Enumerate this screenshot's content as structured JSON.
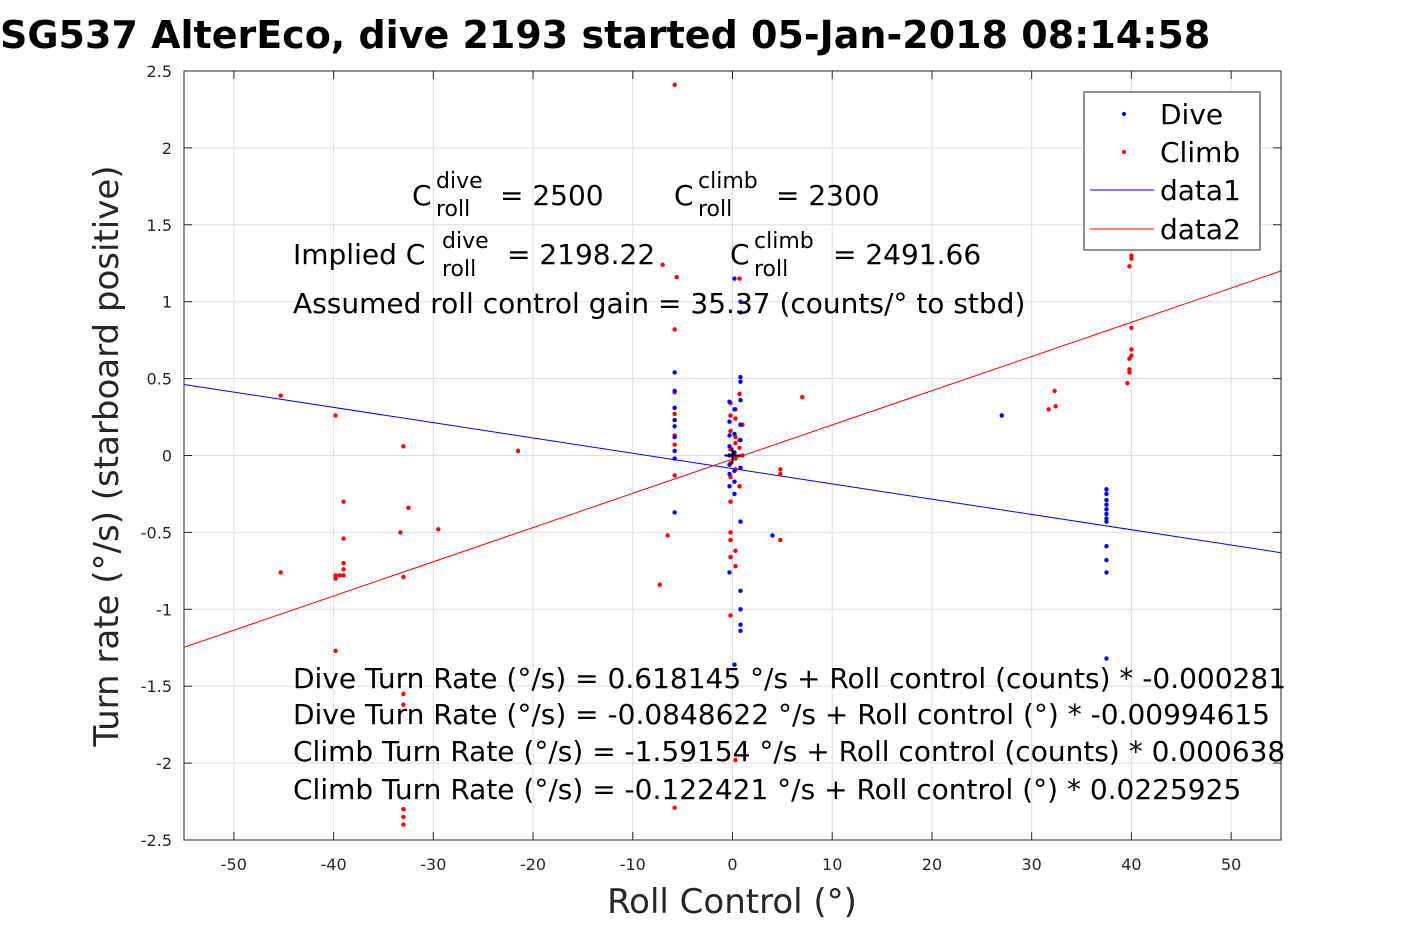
{
  "chart_data": {
    "type": "scatter",
    "title": "SG537 AlterEco, dive 2193 started 05-Jan-2018 08:14:58",
    "xlabel": "Roll Control (°)",
    "ylabel": "Turn rate (°/s) (starboard positive)",
    "xlim": [
      -55,
      55
    ],
    "ylim": [
      -2.5,
      2.5
    ],
    "xticks": [
      -50,
      -40,
      -30,
      -20,
      -10,
      0,
      10,
      20,
      30,
      40,
      50
    ],
    "yticks": [
      -2.5,
      -2,
      -1.5,
      -1,
      -0.5,
      0,
      0.5,
      1,
      1.5,
      2,
      2.5
    ],
    "grid": true,
    "legend": {
      "placement": "top-right",
      "entries": [
        "Dive",
        "Climb",
        "data1",
        "data2"
      ]
    },
    "colors": {
      "dive": "#0000ff",
      "climb": "#ff0000",
      "axes": "#262626",
      "grid": "#dddddd"
    },
    "series": [
      {
        "name": "Dive",
        "kind": "points",
        "points": [
          [
            -5.8,
            0.54
          ],
          [
            -5.8,
            0.42
          ],
          [
            -5.8,
            0.31
          ],
          [
            -5.8,
            0.23
          ],
          [
            -5.8,
            0.19
          ],
          [
            -5.8,
            0.12
          ],
          [
            -5.8,
            0.03
          ],
          [
            -5.8,
            -0.02
          ],
          [
            -5.8,
            -0.37
          ],
          [
            -0.3,
            0.35
          ],
          [
            -0.3,
            0.22
          ],
          [
            -0.3,
            0.13
          ],
          [
            -0.3,
            0.06
          ],
          [
            -0.3,
            0.0
          ],
          [
            -0.3,
            -0.06
          ],
          [
            -0.3,
            -0.12
          ],
          [
            -0.3,
            -0.2
          ],
          [
            -0.3,
            -0.76
          ],
          [
            0.2,
            0.3
          ],
          [
            0.2,
            0.14
          ],
          [
            0.2,
            0.02
          ],
          [
            0.2,
            -0.1
          ],
          [
            0.2,
            -0.17
          ],
          [
            0.2,
            -0.25
          ],
          [
            0.2,
            1.15
          ],
          [
            0.2,
            -1.36
          ],
          [
            0.8,
            0.51
          ],
          [
            0.8,
            0.48
          ],
          [
            0.8,
            0.36
          ],
          [
            0.8,
            0.2
          ],
          [
            0.8,
            0.1
          ],
          [
            0.8,
            -0.08
          ],
          [
            0.8,
            -0.43
          ],
          [
            0.8,
            -0.88
          ],
          [
            0.8,
            -1.0
          ],
          [
            0.8,
            -1.1
          ],
          [
            0.8,
            -1.14
          ],
          [
            0.8,
            1.0
          ],
          [
            0.8,
            0.93
          ],
          [
            4.0,
            -0.52
          ],
          [
            27.0,
            0.26
          ],
          [
            37.5,
            -0.22
          ],
          [
            37.5,
            -0.25
          ],
          [
            37.5,
            -0.29
          ],
          [
            37.5,
            -0.32
          ],
          [
            37.5,
            -0.35
          ],
          [
            37.5,
            -0.38
          ],
          [
            37.5,
            -0.41
          ],
          [
            37.5,
            -0.43
          ],
          [
            37.5,
            -0.59
          ],
          [
            37.5,
            -0.68
          ],
          [
            37.5,
            -0.76
          ],
          [
            37.5,
            -1.32
          ]
        ]
      },
      {
        "name": "Climb",
        "kind": "points",
        "points": [
          [
            -45.3,
            0.39
          ],
          [
            -45.3,
            -0.76
          ],
          [
            -39.8,
            0.26
          ],
          [
            -39.8,
            -0.78
          ],
          [
            -39.8,
            -0.8
          ],
          [
            -39.8,
            -1.27
          ],
          [
            -39.4,
            -0.78
          ],
          [
            -39.0,
            -0.3
          ],
          [
            -39.0,
            -0.54
          ],
          [
            -39.0,
            -0.7
          ],
          [
            -39.0,
            -0.74
          ],
          [
            -39.0,
            -0.78
          ],
          [
            -33.3,
            -0.5
          ],
          [
            -33.0,
            0.06
          ],
          [
            -33.0,
            -0.79
          ],
          [
            -33.0,
            -1.55
          ],
          [
            -33.0,
            -1.62
          ],
          [
            -33.0,
            -2.3
          ],
          [
            -33.0,
            -2.35
          ],
          [
            -33.0,
            -2.4
          ],
          [
            -32.5,
            -0.34
          ],
          [
            -29.5,
            -0.48
          ],
          [
            -21.5,
            0.03
          ],
          [
            -7.0,
            1.24
          ],
          [
            -6.5,
            -0.52
          ],
          [
            -7.3,
            -0.84
          ],
          [
            -5.8,
            2.41
          ],
          [
            -5.6,
            1.16
          ],
          [
            -5.8,
            0.82
          ],
          [
            -5.8,
            0.41
          ],
          [
            -5.8,
            0.27
          ],
          [
            -5.8,
            0.13
          ],
          [
            -5.8,
            0.07
          ],
          [
            -5.8,
            -0.13
          ],
          [
            -5.8,
            -2.29
          ],
          [
            -0.2,
            0.34
          ],
          [
            -0.2,
            0.26
          ],
          [
            -0.2,
            0.16
          ],
          [
            -0.2,
            0.04
          ],
          [
            -0.2,
            -0.05
          ],
          [
            -0.2,
            -0.14
          ],
          [
            -0.2,
            -0.3
          ],
          [
            -0.2,
            -0.5
          ],
          [
            -0.2,
            -0.55
          ],
          [
            -0.2,
            -0.66
          ],
          [
            -0.2,
            -1.04
          ],
          [
            0.3,
            0.3
          ],
          [
            0.3,
            0.24
          ],
          [
            0.3,
            0.12
          ],
          [
            0.3,
            0.08
          ],
          [
            0.3,
            -0.02
          ],
          [
            0.3,
            -0.09
          ],
          [
            0.3,
            -0.62
          ],
          [
            0.3,
            -0.72
          ],
          [
            0.3,
            -1.98
          ],
          [
            0.7,
            1.15
          ],
          [
            0.7,
            0.4
          ],
          [
            0.7,
            0.1
          ],
          [
            0.7,
            0.05
          ],
          [
            0.7,
            -0.2
          ],
          [
            1.0,
            0.2
          ],
          [
            1.0,
            0.0
          ],
          [
            4.8,
            -0.09
          ],
          [
            4.8,
            -0.12
          ],
          [
            4.8,
            -0.55
          ],
          [
            7.0,
            0.38
          ],
          [
            31.7,
            0.3
          ],
          [
            32.4,
            0.32
          ],
          [
            32.3,
            0.42
          ],
          [
            40.0,
            1.3
          ],
          [
            40.0,
            1.28
          ],
          [
            39.8,
            1.23
          ],
          [
            40.0,
            0.83
          ],
          [
            40.0,
            0.69
          ],
          [
            40.0,
            0.65
          ],
          [
            39.8,
            0.63
          ],
          [
            39.8,
            0.56
          ],
          [
            39.8,
            0.54
          ],
          [
            39.6,
            0.47
          ]
        ]
      },
      {
        "name": "data1",
        "kind": "line",
        "points": [
          [
            -55,
            0.462
          ],
          [
            55,
            -0.632
          ]
        ]
      },
      {
        "name": "data2",
        "kind": "line",
        "points": [
          [
            -55,
            -1.247
          ],
          [
            55,
            1.2
          ]
        ]
      }
    ],
    "crosshair": [
      0,
      0
    ],
    "annotations": {
      "c_dive": {
        "base": "C",
        "sup": "dive",
        "sub": "roll",
        "value": "= 2500"
      },
      "c_climb": {
        "base": "C",
        "sup": "climb",
        "sub": "roll",
        "value": "= 2300"
      },
      "implied_prefix": "Implied C",
      "implied_dive_sup": "dive",
      "implied_dive_sub": "roll",
      "implied_dive_value": "= 2198.22",
      "implied_climb": {
        "base": "C",
        "sup": "climb",
        "sub": "roll",
        "value": "= 2491.66"
      },
      "gain": "Assumed roll control gain = 35.37 (counts/° to stbd)",
      "fits": [
        "Dive Turn Rate (°/s) = 0.618145 °/s + Roll control (counts) * -0.000281",
        "Dive Turn Rate (°/s) = -0.0848622 °/s + Roll control (°) * -0.00994615",
        "Climb Turn Rate (°/s) = -1.59154 °/s + Roll control (counts) * 0.000638",
        "Climb Turn Rate (°/s) = -0.122421 °/s + Roll control (°) * 0.0225925"
      ]
    }
  }
}
